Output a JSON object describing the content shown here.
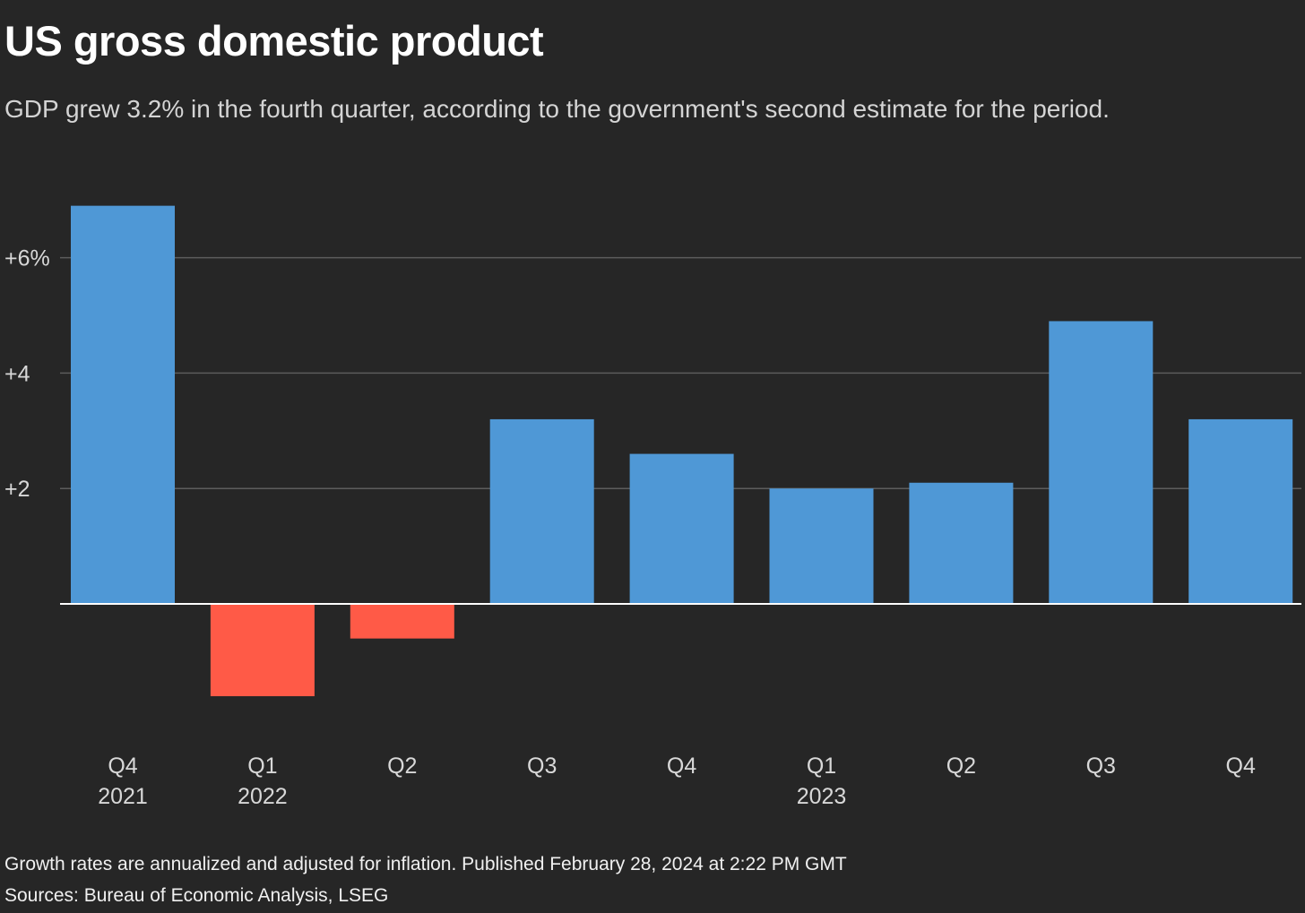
{
  "header": {
    "title": "US gross domestic product",
    "subtitle": "GDP grew 3.2% in the fourth quarter, according to the government's second estimate for the period."
  },
  "chart_data": {
    "type": "bar",
    "categories": [
      "Q4 2021",
      "Q1 2022",
      "Q2 2022",
      "Q3 2022",
      "Q4 2022",
      "Q1 2023",
      "Q2 2023",
      "Q3 2023",
      "Q4 2023"
    ],
    "category_labels": [
      [
        "Q4",
        "2021"
      ],
      [
        "Q1",
        "2022"
      ],
      [
        "Q2",
        ""
      ],
      [
        "Q3",
        ""
      ],
      [
        "Q4",
        ""
      ],
      [
        "Q1",
        "2023"
      ],
      [
        "Q2",
        ""
      ],
      [
        "Q3",
        ""
      ],
      [
        "Q4",
        ""
      ]
    ],
    "values": [
      6.9,
      -1.6,
      -0.6,
      3.2,
      2.6,
      2.0,
      2.1,
      4.9,
      3.2
    ],
    "ylim": [
      -3.0,
      7.0
    ],
    "yticks": [
      2,
      4,
      6
    ],
    "ytick_labels": [
      "+2",
      "+4",
      "+6%"
    ],
    "grid": true,
    "colors": {
      "positive": "#4f98d6",
      "negative": "#ff5a47",
      "gridline": "#5c5c5c",
      "baseline": "#ffffff",
      "tick_text": "#d8d8d8"
    }
  },
  "footer": {
    "note": "Growth rates are annualized and adjusted for inflation. Published February 28, 2024 at 2:22 PM GMT",
    "source": "Sources: Bureau of Economic Analysis, LSEG"
  }
}
